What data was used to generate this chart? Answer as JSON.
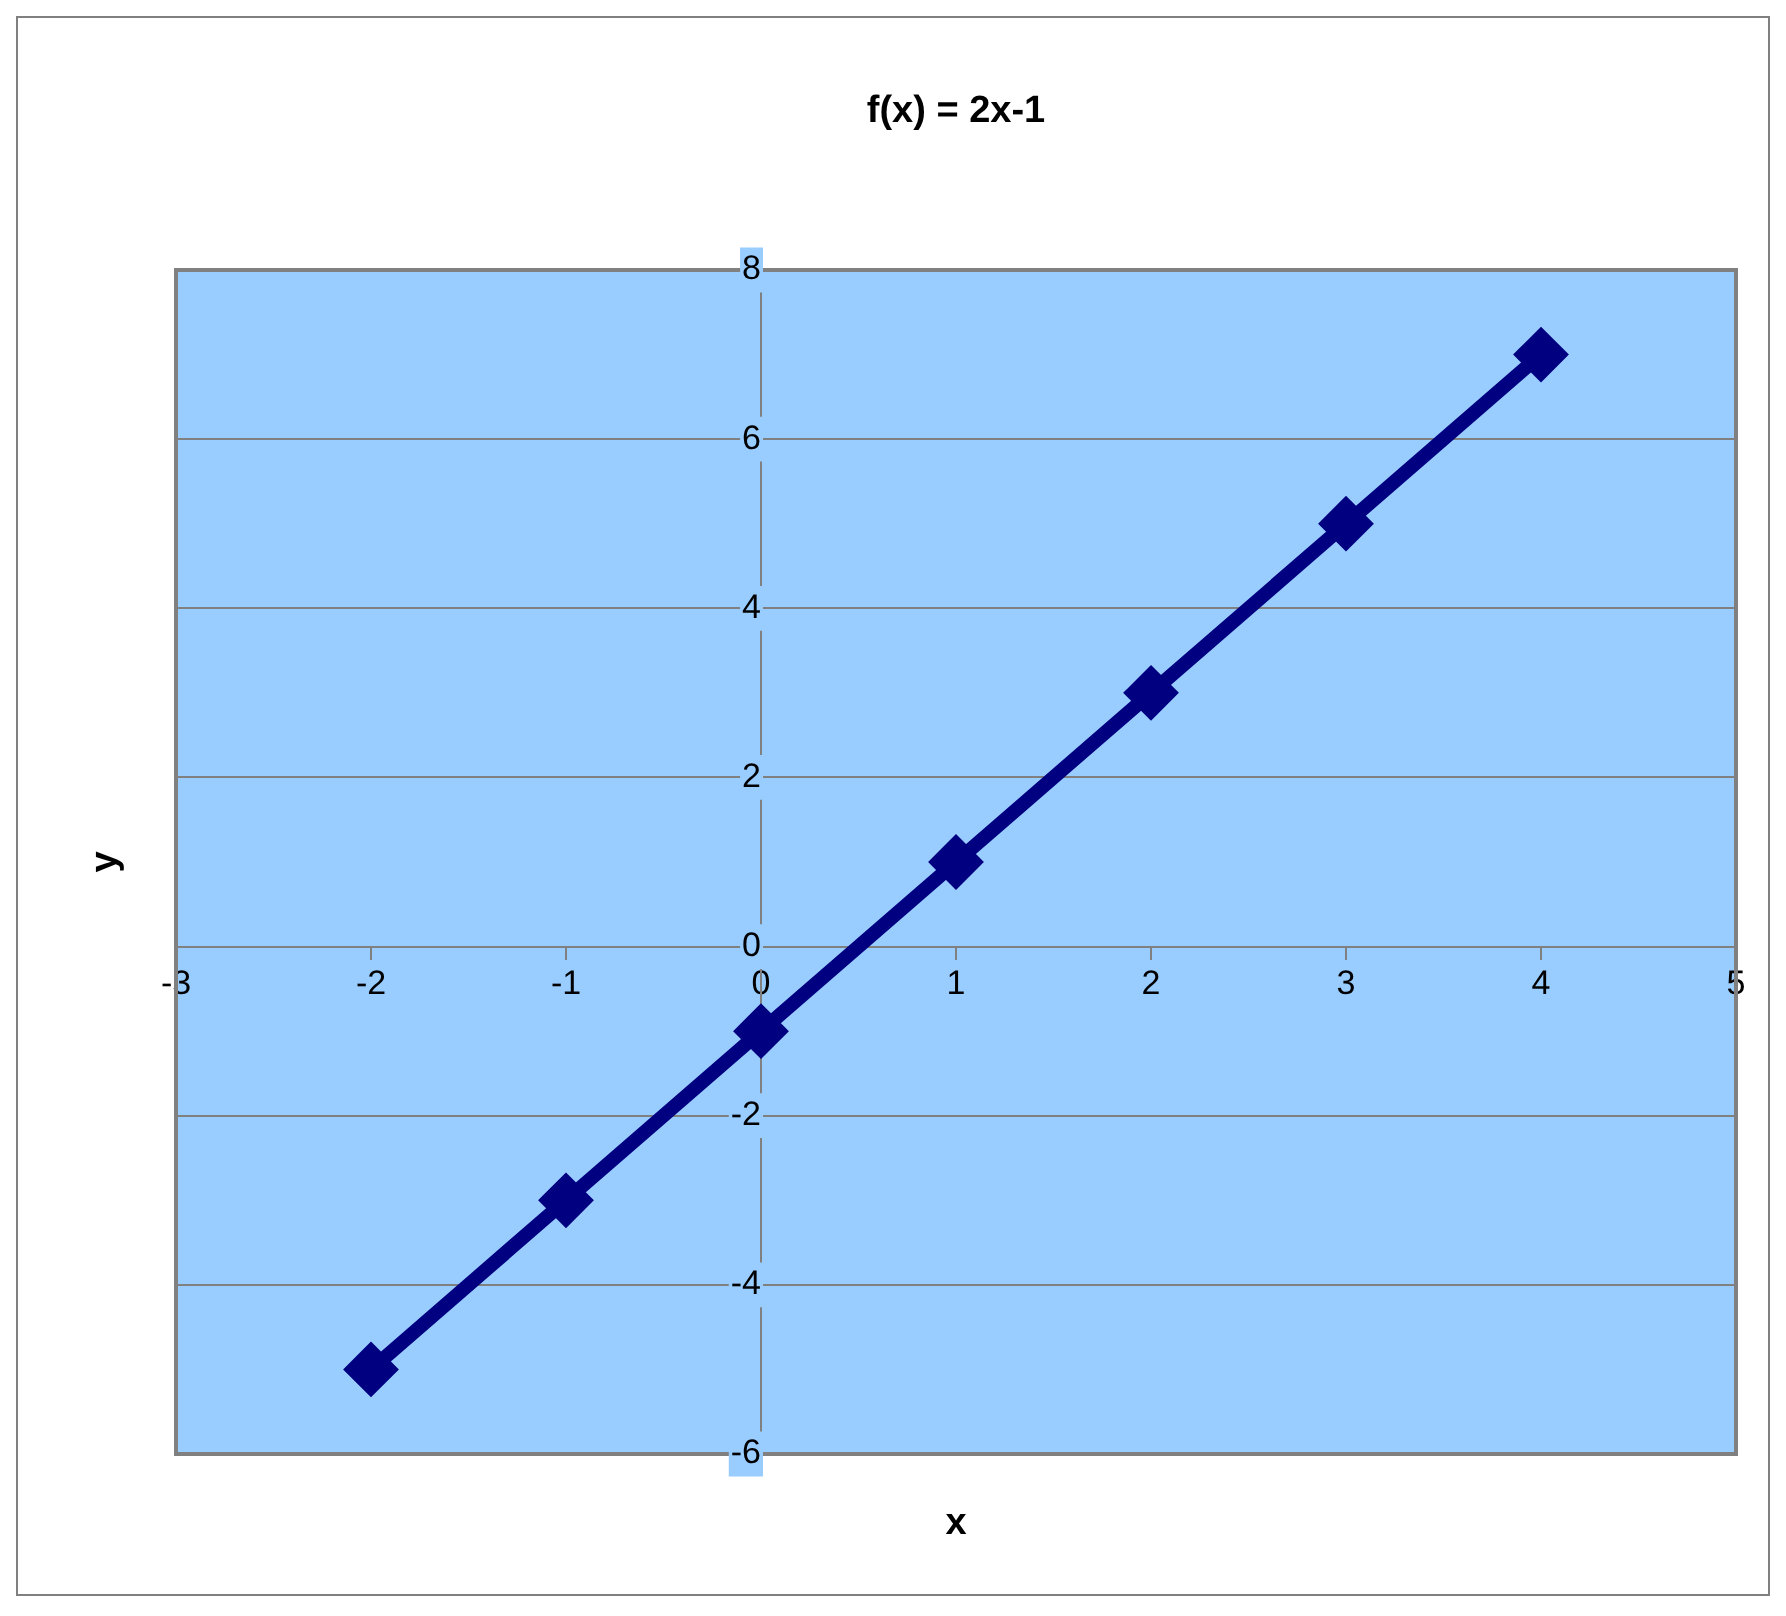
{
  "chart_data": {
    "type": "line",
    "title": "f(x) = 2x-1",
    "xlabel": "x",
    "ylabel": "y",
    "x": [
      -2,
      -1,
      0,
      1,
      2,
      3,
      4
    ],
    "series": [
      {
        "color": "#000080",
        "values": [
          -5,
          -3,
          -1,
          1,
          3,
          5,
          7
        ]
      }
    ],
    "xlim": [
      -3,
      5
    ],
    "xticks": [
      -3,
      -2,
      -1,
      0,
      1,
      2,
      3,
      4,
      5
    ],
    "ylim": [
      -6,
      8
    ],
    "yticks": [
      -6,
      -4,
      -2,
      0,
      2,
      4,
      6,
      8
    ],
    "grid": "y",
    "legend": false,
    "marker": "diamond",
    "line_style": "solid"
  }
}
